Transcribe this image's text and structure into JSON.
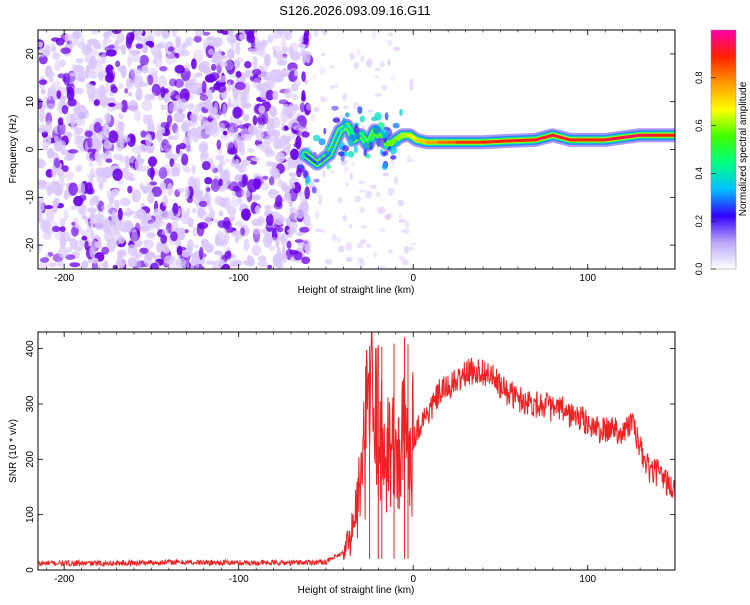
{
  "title": "S126.2026.093.09.16.G11",
  "colors": {
    "axis": "#000000",
    "snr_line": "#ee2222",
    "noise_dark": "#6a00e8",
    "noise_light": "#d9c6fb",
    "signal_core": "#dd2222"
  },
  "chart_data": [
    {
      "type": "heatmap",
      "name": "spectrogram",
      "title": "S126.2026.093.09.16.G11",
      "xlabel": "Height of straight line (km)",
      "ylabel": "Frequency (Hz)",
      "xlim": [
        -215,
        150
      ],
      "ylim": [
        -25,
        25
      ],
      "xticks": [
        -200,
        -100,
        0,
        100
      ],
      "yticks": [
        -20,
        -10,
        0,
        10,
        20
      ],
      "noise_region_x": [
        -215,
        -60
      ],
      "signal_trace": {
        "x": [
          -62,
          -55,
          -48,
          -42,
          -38,
          -34,
          -30,
          -26,
          -22,
          -18,
          -14,
          -10,
          -6,
          -2,
          2,
          8,
          15,
          25,
          40,
          55,
          70,
          80,
          90,
          100,
          110,
          120,
          130,
          140,
          150
        ],
        "freq_hz": [
          -1,
          -3,
          -1,
          4,
          5,
          2,
          3,
          1,
          4,
          2,
          1,
          2,
          3,
          3,
          2,
          1.5,
          1.5,
          1.5,
          1.5,
          1.8,
          2,
          3,
          2,
          2,
          2,
          2.5,
          3,
          3,
          3
        ],
        "amplitude": [
          0.25,
          0.3,
          0.3,
          0.35,
          0.4,
          0.4,
          0.45,
          0.45,
          0.5,
          0.5,
          0.55,
          0.6,
          0.6,
          0.65,
          0.7,
          0.75,
          0.8,
          0.85,
          0.9,
          0.9,
          0.9,
          0.95,
          0.9,
          0.9,
          0.9,
          0.95,
          0.95,
          0.9,
          0.9
        ]
      }
    },
    {
      "type": "colorbar",
      "name": "amplitude-colorbar",
      "label": "Normalized spectral amplitude",
      "range": [
        0,
        1
      ],
      "ticks": [
        "0.0",
        "0.2",
        "0.4",
        "0.6",
        "0.8"
      ],
      "tick_values": [
        0,
        0.2,
        0.4,
        0.6,
        0.8
      ],
      "colormap": [
        "#ffffff",
        "#b8a8f8",
        "#3300ff",
        "#00c0ff",
        "#00ff80",
        "#40ff00",
        "#ffff00",
        "#ff9900",
        "#ff2200",
        "#ff00aa"
      ]
    },
    {
      "type": "line",
      "name": "snr",
      "xlabel": "Height of straight line (km)",
      "ylabel": "SNR (10 * v/v)",
      "xlim": [
        -215,
        150
      ],
      "ylim": [
        0,
        430
      ],
      "xticks": [
        -200,
        -100,
        0,
        100
      ],
      "yticks": [
        0,
        100,
        200,
        300,
        400
      ],
      "series": [
        {
          "name": "SNR",
          "x": [
            -215,
            -180,
            -140,
            -100,
            -70,
            -50,
            -40,
            -35,
            -32,
            -28,
            -25,
            -22,
            -20,
            -18,
            -15,
            -10,
            -5,
            0,
            5,
            10,
            15,
            20,
            25,
            30,
            35,
            40,
            45,
            50,
            55,
            60,
            65,
            70,
            75,
            80,
            85,
            90,
            95,
            100,
            105,
            110,
            115,
            120,
            125,
            130,
            135,
            140,
            145,
            150
          ],
          "values": [
            12,
            12,
            14,
            13,
            13,
            15,
            30,
            70,
            120,
            200,
            340,
            250,
            300,
            210,
            230,
            200,
            230,
            240,
            270,
            290,
            320,
            330,
            340,
            355,
            360,
            358,
            350,
            330,
            320,
            310,
            305,
            300,
            300,
            290,
            290,
            280,
            275,
            265,
            255,
            250,
            260,
            245,
            270,
            220,
            180,
            175,
            160,
            140
          ]
        }
      ],
      "spike_x": [
        -25,
        -20,
        -18,
        -11,
        -5,
        -3
      ]
    }
  ]
}
